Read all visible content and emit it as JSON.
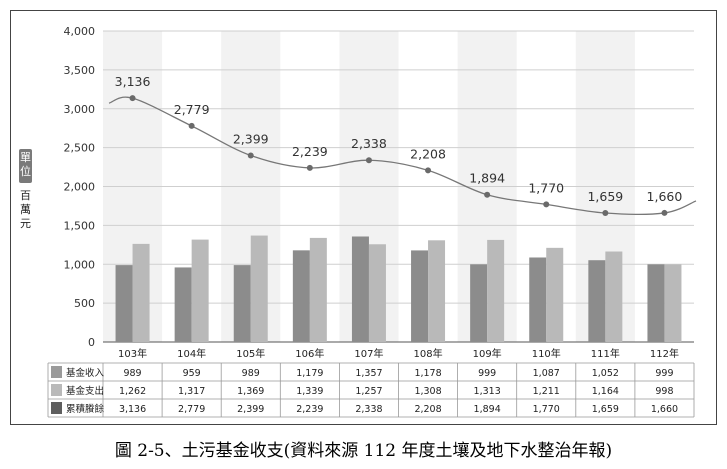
{
  "chart_data": {
    "type": "bar",
    "categories": [
      "103年",
      "104年",
      "105年",
      "106年",
      "107年",
      "108年",
      "109年",
      "110年",
      "111年",
      "112年"
    ],
    "series": [
      {
        "name": "基金收入",
        "type": "bar",
        "color": "#8c8c8c",
        "values": [
          989,
          959,
          989,
          1179,
          1357,
          1178,
          999,
          1087,
          1052,
          999
        ]
      },
      {
        "name": "基金支出",
        "type": "bar",
        "color": "#b9b9b9",
        "values": [
          1262,
          1317,
          1369,
          1339,
          1257,
          1308,
          1313,
          1211,
          1164,
          998
        ]
      },
      {
        "name": "累積賸餘",
        "type": "line",
        "color": "#666666",
        "values": [
          3136,
          2779,
          2399,
          2239,
          2338,
          2208,
          1894,
          1770,
          1659,
          1660
        ]
      }
    ],
    "data_labels": [
      "3,136",
      "2,779",
      "2,399",
      "2,239",
      "2,338",
      "2,208",
      "1,894",
      "1,770",
      "1,659",
      "1,660"
    ],
    "y_ticks": [
      "0",
      "500",
      "1,000",
      "1,500",
      "2,000",
      "2,500",
      "3,000",
      "3,500",
      "4,000"
    ],
    "ylim": [
      0,
      4000
    ],
    "ylabel": "百萬元",
    "unit_label": "單位",
    "grid": true,
    "table": {
      "row_labels": [
        "基金收入",
        "基金支出",
        "累積賸餘"
      ],
      "rows": [
        [
          "989",
          "959",
          "989",
          "1,179",
          "1,357",
          "1,178",
          "999",
          "1,087",
          "1,052",
          "999"
        ],
        [
          "1,262",
          "1,317",
          "1,369",
          "1,339",
          "1,257",
          "1,308",
          "1,313",
          "1,211",
          "1,164",
          "998"
        ],
        [
          "3,136",
          "2,779",
          "2,399",
          "2,239",
          "2,338",
          "2,208",
          "1,894",
          "1,770",
          "1,659",
          "1,660"
        ]
      ],
      "swatch_colors": [
        "#9a9a9a",
        "#b9b9b9",
        "#5e5e5e"
      ]
    }
  },
  "caption": "圖 2-5、土污基金收支(資料來源 112 年度土壤及地下水整治年報)"
}
